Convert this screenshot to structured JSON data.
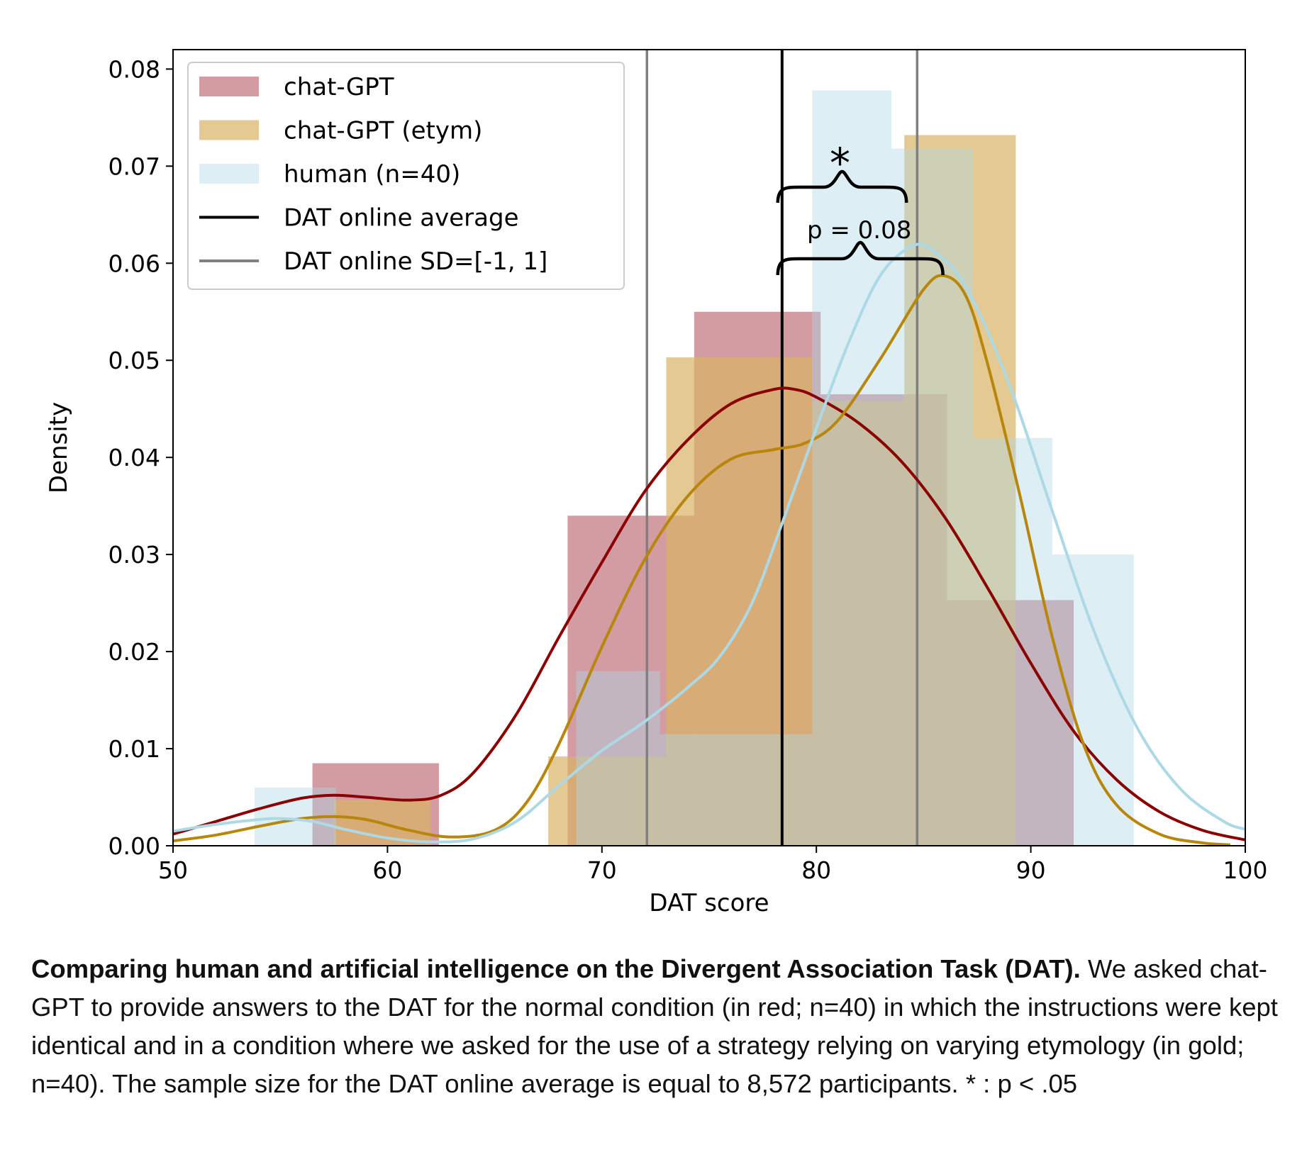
{
  "chart_data": {
    "type": "histogram",
    "xlabel": "DAT score",
    "ylabel": "Density",
    "xlim": [
      50,
      100
    ],
    "ylim": [
      0,
      0.082
    ],
    "x_ticks": [
      50,
      60,
      70,
      80,
      90,
      100
    ],
    "x_tick_labels": [
      "50",
      "60",
      "70",
      "80",
      "90",
      "100"
    ],
    "y_ticks": [
      0,
      0.01,
      0.02,
      0.03,
      0.04,
      0.05,
      0.06,
      0.07,
      0.08
    ],
    "y_tick_labels": [
      "0.00",
      "0.01",
      "0.02",
      "0.03",
      "0.04",
      "0.05",
      "0.06",
      "0.07",
      "0.08"
    ],
    "grid": false,
    "legend_position": "top-left",
    "series": [
      {
        "name": "chat-GPT",
        "kind": "histogram",
        "color": "#c1727a",
        "bins": [
          [
            56.5,
            62.4,
            0.0085
          ],
          [
            68.4,
            74.3,
            0.034
          ],
          [
            74.3,
            80.2,
            0.055
          ],
          [
            80.2,
            86.1,
            0.0465
          ],
          [
            86.1,
            92.0,
            0.0253
          ]
        ],
        "kde": [
          [
            50,
            0.0012
          ],
          [
            52,
            0.0025
          ],
          [
            54,
            0.0038
          ],
          [
            56,
            0.0049
          ],
          [
            57.5,
            0.0052
          ],
          [
            59,
            0.005
          ],
          [
            61,
            0.0047
          ],
          [
            62.5,
            0.0052
          ],
          [
            64,
            0.0075
          ],
          [
            66,
            0.0135
          ],
          [
            68,
            0.0215
          ],
          [
            70,
            0.0292
          ],
          [
            72,
            0.0365
          ],
          [
            74,
            0.0418
          ],
          [
            76,
            0.0455
          ],
          [
            78,
            0.047
          ],
          [
            79,
            0.047
          ],
          [
            80,
            0.0462
          ],
          [
            82,
            0.0435
          ],
          [
            84,
            0.0395
          ],
          [
            86,
            0.0338
          ],
          [
            88,
            0.0265
          ],
          [
            90,
            0.0188
          ],
          [
            92,
            0.0118
          ],
          [
            94,
            0.0068
          ],
          [
            96,
            0.0035
          ],
          [
            98,
            0.0016
          ],
          [
            100,
            0.0006
          ]
        ]
      },
      {
        "name": "chat-GPT (etym)",
        "kind": "histogram",
        "color": "#d9b364",
        "bins": [
          [
            57.5,
            62.0,
            0.0047
          ],
          [
            67.5,
            68.6,
            0.0092
          ],
          [
            68.6,
            73.0,
            0.0092
          ],
          [
            73.0,
            77.4,
            0.0503
          ],
          [
            77.4,
            79.8,
            0.0503
          ],
          [
            79.8,
            84.1,
            0.0458
          ],
          [
            84.1,
            89.3,
            0.0732
          ],
          [
            89.3,
            90.0,
            0.0
          ]
        ],
        "kde": [
          [
            50,
            0.0005
          ],
          [
            52,
            0.0011
          ],
          [
            54,
            0.002
          ],
          [
            56,
            0.0028
          ],
          [
            57.5,
            0.003
          ],
          [
            59,
            0.0027
          ],
          [
            61,
            0.0016
          ],
          [
            63,
            0.0009
          ],
          [
            65,
            0.0016
          ],
          [
            66.5,
            0.0045
          ],
          [
            68,
            0.0105
          ],
          [
            70,
            0.0205
          ],
          [
            72,
            0.0295
          ],
          [
            74,
            0.036
          ],
          [
            76,
            0.0398
          ],
          [
            78,
            0.0408
          ],
          [
            79.5,
            0.0415
          ],
          [
            81,
            0.0438
          ],
          [
            83,
            0.0502
          ],
          [
            85,
            0.0573
          ],
          [
            86,
            0.0587
          ],
          [
            87,
            0.0565
          ],
          [
            88,
            0.0495
          ],
          [
            89.5,
            0.036
          ],
          [
            91,
            0.0215
          ],
          [
            92.5,
            0.0102
          ],
          [
            94,
            0.0042
          ],
          [
            96,
            0.0012
          ],
          [
            98,
            0.0003
          ],
          [
            99.3,
            0.0001
          ]
        ]
      },
      {
        "name": "human (n=40)",
        "kind": "histogram",
        "color": "#add8e6",
        "bins": [
          [
            53.8,
            57.6,
            0.006
          ],
          [
            68.8,
            72.7,
            0.018
          ],
          [
            72.7,
            79.8,
            0.0115
          ],
          [
            79.8,
            83.5,
            0.0778
          ],
          [
            83.5,
            87.3,
            0.0718
          ],
          [
            87.3,
            91.0,
            0.042
          ],
          [
            91.0,
            94.8,
            0.03
          ]
        ],
        "kde": [
          [
            50,
            0.0015
          ],
          [
            52,
            0.0022
          ],
          [
            54,
            0.0027
          ],
          [
            55,
            0.0028
          ],
          [
            56.5,
            0.0025
          ],
          [
            58,
            0.0017
          ],
          [
            60,
            0.0008
          ],
          [
            62,
            0.0004
          ],
          [
            64,
            0.0007
          ],
          [
            66,
            0.0025
          ],
          [
            68,
            0.0062
          ],
          [
            70,
            0.0098
          ],
          [
            72,
            0.0128
          ],
          [
            74,
            0.0163
          ],
          [
            75.5,
            0.0195
          ],
          [
            77,
            0.025
          ],
          [
            78.5,
            0.0338
          ],
          [
            80,
            0.043
          ],
          [
            81.5,
            0.0518
          ],
          [
            83,
            0.0588
          ],
          [
            84.5,
            0.0618
          ],
          [
            85.5,
            0.0612
          ],
          [
            87,
            0.0575
          ],
          [
            89,
            0.0475
          ],
          [
            91,
            0.0345
          ],
          [
            93,
            0.0218
          ],
          [
            95,
            0.012
          ],
          [
            97,
            0.0058
          ],
          [
            99,
            0.0025
          ],
          [
            100,
            0.0017
          ]
        ]
      },
      {
        "name": "DAT online average",
        "kind": "vline",
        "color": "#000000",
        "x": 78.4
      },
      {
        "name": "DAT online SD=[-1, 1]",
        "kind": "vline",
        "color": "#808080",
        "x": [
          72.1,
          84.7
        ]
      }
    ],
    "annotations": [
      {
        "text": "*",
        "x": 81.1
      },
      {
        "text": "p = 0.08",
        "x": 82.0
      }
    ]
  },
  "caption": {
    "bold": "Comparing human and artificial intelligence on the Divergent Association Task (DAT).",
    "text": " We asked chat-GPT to provide answers to the DAT for the normal condition (in red; n=40) in which the instructions were kept identical and in a condition where we asked for the use of a strategy relying on varying etymology (in gold; n=40). The sample size for the DAT online average is equal to 8,572 participants. * : p < .05"
  }
}
